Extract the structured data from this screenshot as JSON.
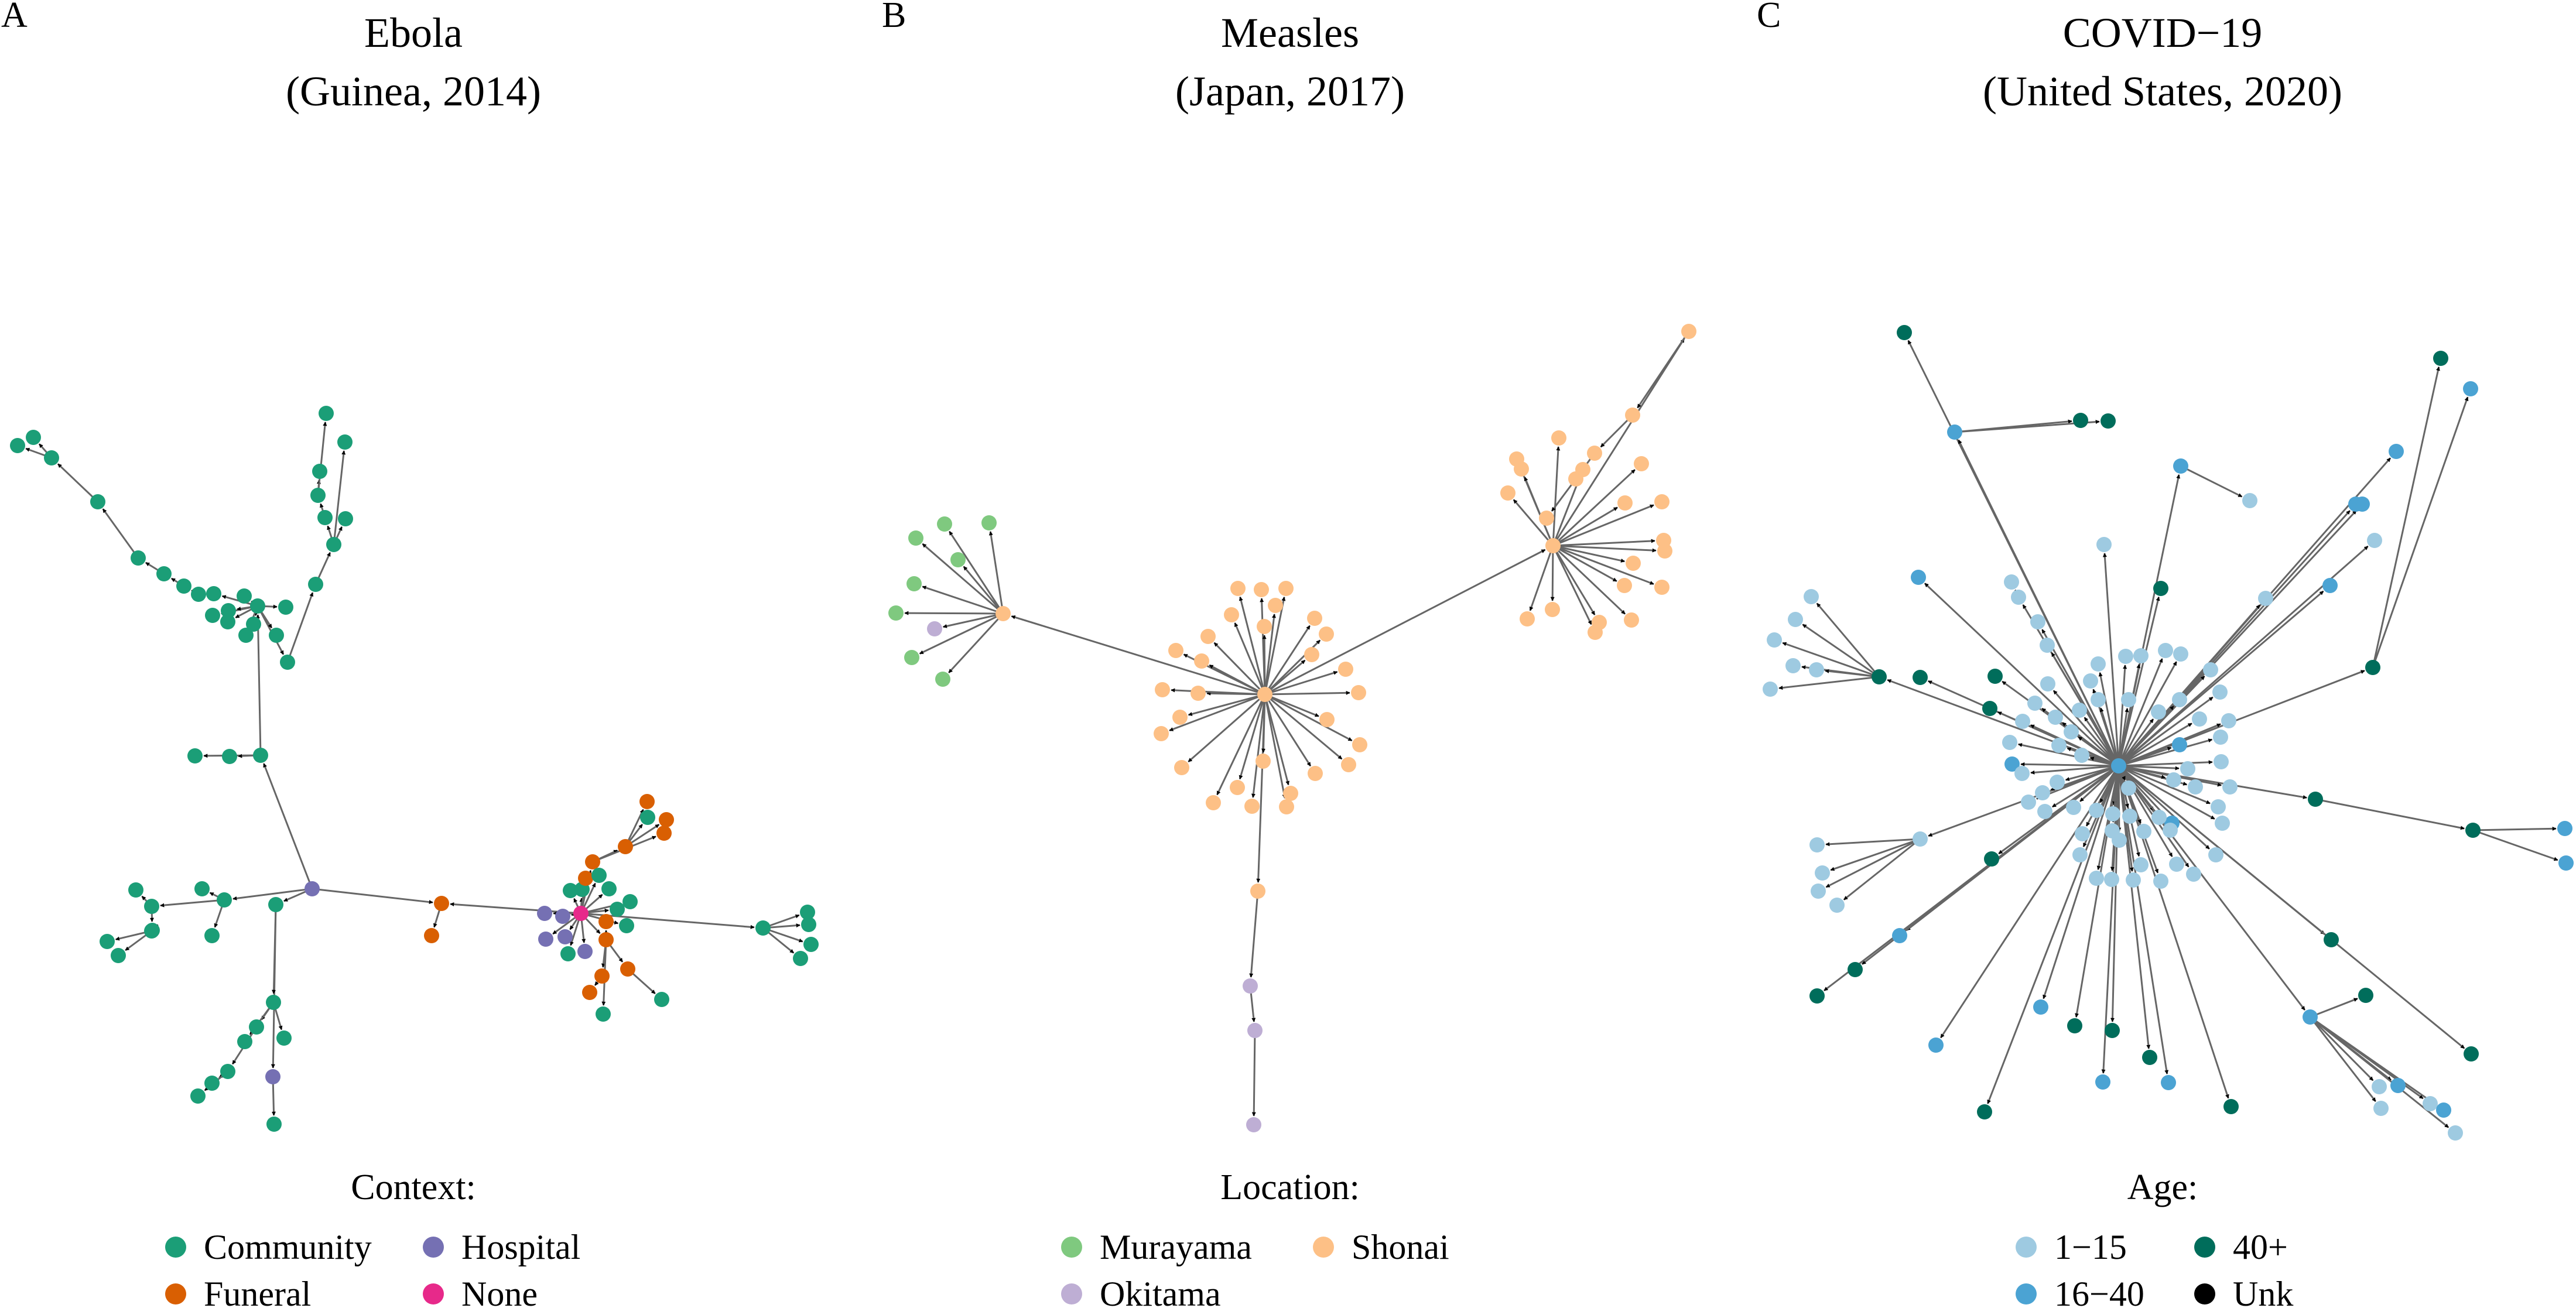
{
  "panels": [
    {
      "letter": "A",
      "title_line1": "Ebola",
      "title_line2": "(Guinea, 2014)",
      "legend_title": "Context:",
      "legend": [
        {
          "label": "Community",
          "color": "#1b9e77"
        },
        {
          "label": "Hospital",
          "color": "#7570b3"
        },
        {
          "label": "Funeral",
          "color": "#d95f02"
        },
        {
          "label": "None",
          "color": "#e7298a"
        }
      ]
    },
    {
      "letter": "B",
      "title_line1": "Measles",
      "title_line2": "(Japan, 2017)",
      "legend_title": "Location:",
      "legend": [
        {
          "label": "Murayama",
          "color": "#7fc97f"
        },
        {
          "label": "Shonai",
          "color": "#fdc086"
        },
        {
          "label": "Okitama",
          "color": "#beaed4"
        }
      ]
    },
    {
      "letter": "C",
      "title_line1": "COVID−19",
      "title_line2": "(United States, 2020)",
      "legend_title": "Age:",
      "legend": [
        {
          "label": "1−15",
          "color": "#9ecae1"
        },
        {
          "label": "40+",
          "color": "#006d5b"
        },
        {
          "label": "16−40",
          "color": "#4ba3d3"
        },
        {
          "label": "Unk",
          "color": "#000000"
        }
      ]
    }
  ]
}
